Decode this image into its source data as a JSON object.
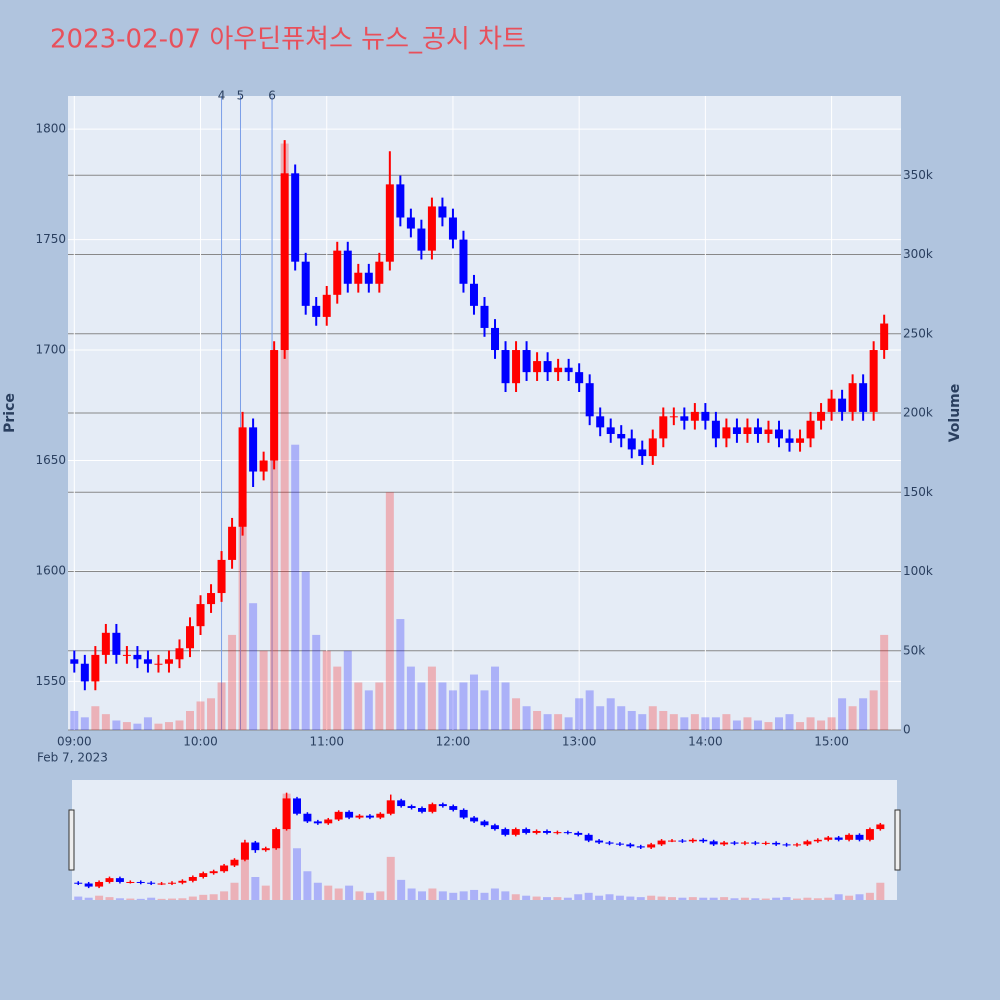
{
  "chart_data": {
    "type": "candlestick",
    "title": "2023-02-07 아우딘퓨쳐스 뉴스_공시 차트",
    "ylabel": "Price",
    "y2label": "Volume",
    "x_date_label": "Feb 7, 2023",
    "x": [
      "09:00",
      "09:05",
      "09:10",
      "09:15",
      "09:20",
      "09:25",
      "09:30",
      "09:35",
      "09:40",
      "09:45",
      "09:50",
      "09:55",
      "10:00",
      "10:05",
      "10:10",
      "10:15",
      "10:20",
      "10:25",
      "10:30",
      "10:35",
      "10:40",
      "10:45",
      "10:50",
      "10:55",
      "11:00",
      "11:05",
      "11:10",
      "11:15",
      "11:20",
      "11:25",
      "11:30",
      "11:35",
      "11:40",
      "11:45",
      "11:50",
      "11:55",
      "12:00",
      "12:05",
      "12:10",
      "12:15",
      "12:20",
      "12:25",
      "12:30",
      "12:35",
      "12:40",
      "12:45",
      "12:50",
      "12:55",
      "13:00",
      "13:05",
      "13:10",
      "13:15",
      "13:20",
      "13:25",
      "13:30",
      "13:35",
      "13:40",
      "13:45",
      "13:50",
      "13:55",
      "14:00",
      "14:05",
      "14:10",
      "14:15",
      "14:20",
      "14:25",
      "14:30",
      "14:35",
      "14:40",
      "14:45",
      "14:50",
      "14:55",
      "15:00",
      "15:05",
      "15:10",
      "15:15",
      "15:20",
      "15:25"
    ],
    "open": [
      1560,
      1558,
      1550,
      1562,
      1572,
      1562,
      1562,
      1560,
      1558,
      1558,
      1560,
      1565,
      1575,
      1585,
      1590,
      1605,
      1620,
      1665,
      1645,
      1650,
      1700,
      1780,
      1740,
      1720,
      1715,
      1725,
      1745,
      1730,
      1735,
      1730,
      1740,
      1775,
      1760,
      1755,
      1745,
      1765,
      1760,
      1750,
      1730,
      1720,
      1710,
      1700,
      1685,
      1700,
      1690,
      1695,
      1690,
      1692,
      1690,
      1685,
      1670,
      1665,
      1662,
      1660,
      1655,
      1652,
      1660,
      1670,
      1670,
      1668,
      1672,
      1668,
      1660,
      1665,
      1662,
      1665,
      1662,
      1664,
      1660,
      1658,
      1660,
      1668,
      1672,
      1678,
      1672,
      1685,
      1672,
      1700
    ],
    "high": [
      1564,
      1562,
      1566,
      1576,
      1576,
      1566,
      1566,
      1564,
      1562,
      1564,
      1569,
      1579,
      1589,
      1594,
      1609,
      1624,
      1672,
      1669,
      1654,
      1704,
      1795,
      1784,
      1744,
      1724,
      1729,
      1749,
      1749,
      1739,
      1739,
      1744,
      1790,
      1779,
      1764,
      1759,
      1769,
      1769,
      1764,
      1754,
      1734,
      1724,
      1714,
      1704,
      1704,
      1704,
      1699,
      1699,
      1696,
      1696,
      1694,
      1689,
      1674,
      1669,
      1666,
      1664,
      1659,
      1664,
      1674,
      1674,
      1674,
      1676,
      1676,
      1672,
      1669,
      1669,
      1669,
      1669,
      1668,
      1668,
      1664,
      1664,
      1672,
      1676,
      1682,
      1682,
      1689,
      1689,
      1704,
      1716
    ],
    "low": [
      1554,
      1546,
      1546,
      1558,
      1558,
      1558,
      1556,
      1554,
      1554,
      1554,
      1556,
      1561,
      1571,
      1581,
      1586,
      1601,
      1616,
      1638,
      1641,
      1646,
      1696,
      1736,
      1716,
      1711,
      1711,
      1721,
      1726,
      1726,
      1726,
      1726,
      1736,
      1756,
      1751,
      1741,
      1741,
      1756,
      1746,
      1726,
      1716,
      1706,
      1696,
      1681,
      1681,
      1686,
      1686,
      1686,
      1686,
      1686,
      1681,
      1666,
      1661,
      1658,
      1656,
      1651,
      1648,
      1648,
      1656,
      1666,
      1664,
      1664,
      1664,
      1656,
      1656,
      1658,
      1658,
      1658,
      1658,
      1656,
      1654,
      1654,
      1656,
      1664,
      1668,
      1668,
      1668,
      1668,
      1668,
      1696
    ],
    "close": [
      1558,
      1550,
      1562,
      1572,
      1562,
      1562,
      1560,
      1558,
      1558,
      1560,
      1565,
      1575,
      1585,
      1590,
      1605,
      1620,
      1665,
      1645,
      1650,
      1700,
      1780,
      1740,
      1720,
      1715,
      1725,
      1745,
      1730,
      1735,
      1730,
      1740,
      1775,
      1760,
      1755,
      1745,
      1765,
      1760,
      1750,
      1730,
      1720,
      1710,
      1700,
      1685,
      1700,
      1690,
      1695,
      1690,
      1692,
      1690,
      1685,
      1670,
      1665,
      1662,
      1660,
      1655,
      1652,
      1660,
      1670,
      1670,
      1668,
      1672,
      1668,
      1660,
      1665,
      1662,
      1665,
      1662,
      1664,
      1660,
      1658,
      1660,
      1668,
      1672,
      1678,
      1672,
      1685,
      1672,
      1700,
      1712
    ],
    "volume": [
      12000,
      8000,
      15000,
      10000,
      6000,
      5000,
      4000,
      8000,
      4000,
      5000,
      6000,
      12000,
      18000,
      20000,
      30000,
      60000,
      140000,
      80000,
      50000,
      200000,
      370000,
      180000,
      100000,
      60000,
      50000,
      40000,
      50000,
      30000,
      25000,
      30000,
      150000,
      70000,
      40000,
      30000,
      40000,
      30000,
      25000,
      30000,
      35000,
      25000,
      40000,
      30000,
      20000,
      15000,
      12000,
      10000,
      10000,
      8000,
      20000,
      25000,
      15000,
      20000,
      15000,
      12000,
      10000,
      15000,
      12000,
      10000,
      8000,
      10000,
      8000,
      8000,
      10000,
      6000,
      8000,
      6000,
      5000,
      8000,
      10000,
      5000,
      8000,
      6000,
      8000,
      20000,
      15000,
      20000,
      25000,
      60000
    ],
    "increasing_color": "#ff0000",
    "decreasing_color": "#0000ff",
    "xlim": [
      "08:57",
      "15:33"
    ],
    "xticks": [
      "09:00",
      "10:00",
      "11:00",
      "12:00",
      "13:00",
      "14:00",
      "15:00"
    ],
    "ylim": [
      1528,
      1815
    ],
    "yticks": [
      1550,
      1600,
      1650,
      1700,
      1750,
      1800
    ],
    "y2lim": [
      0,
      400000
    ],
    "y2ticks": [
      0,
      {
        "value": 50000,
        "label": "50k"
      },
      {
        "value": 100000,
        "label": "100k"
      },
      {
        "value": 150000,
        "label": "150k"
      },
      {
        "value": 200000,
        "label": "200k"
      },
      {
        "value": 250000,
        "label": "250k"
      },
      {
        "value": 300000,
        "label": "300k"
      },
      {
        "value": 350000,
        "label": "350k"
      }
    ],
    "events": [
      {
        "x": "10:10",
        "label": "4"
      },
      {
        "x": "10:19",
        "label": "5"
      },
      {
        "x": "10:34",
        "label": "6"
      }
    ],
    "grid": true,
    "rangeslider": true
  }
}
